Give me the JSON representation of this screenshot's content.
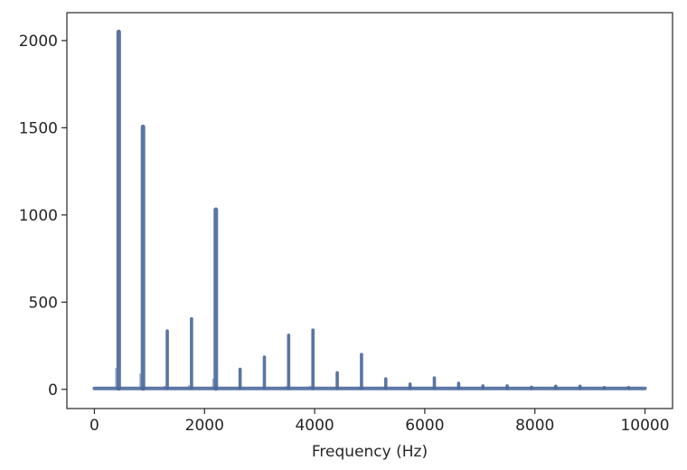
{
  "chart_data": {
    "type": "line",
    "title": "",
    "xlabel": "Frequency (Hz)",
    "ylabel": "",
    "xlim": [
      -500,
      10500
    ],
    "ylim": [
      -110,
      2160
    ],
    "xticks": [
      0,
      2000,
      4000,
      6000,
      8000,
      10000
    ],
    "yticks": [
      0,
      500,
      1000,
      1500,
      2000
    ],
    "grid": false,
    "series_color": "#4c6a9c",
    "baseline": 5,
    "x_start": 0,
    "x_end": 10000,
    "series": [
      {
        "peaks": [
          {
            "x": 441,
            "y": 2050
          },
          {
            "x": 882,
            "y": 1505
          },
          {
            "x": 1323,
            "y": 335
          },
          {
            "x": 1764,
            "y": 405
          },
          {
            "x": 2205,
            "y": 1030
          },
          {
            "x": 2646,
            "y": 115
          },
          {
            "x": 3087,
            "y": 185
          },
          {
            "x": 3528,
            "y": 310
          },
          {
            "x": 3969,
            "y": 340
          },
          {
            "x": 4410,
            "y": 95
          },
          {
            "x": 4851,
            "y": 200
          },
          {
            "x": 5292,
            "y": 60
          },
          {
            "x": 5733,
            "y": 30
          },
          {
            "x": 6174,
            "y": 65
          },
          {
            "x": 6615,
            "y": 35
          },
          {
            "x": 7056,
            "y": 20
          },
          {
            "x": 7497,
            "y": 20
          },
          {
            "x": 7938,
            "y": 12
          },
          {
            "x": 8379,
            "y": 18
          },
          {
            "x": 8820,
            "y": 18
          },
          {
            "x": 9261,
            "y": 10
          },
          {
            "x": 9702,
            "y": 10
          }
        ]
      }
    ]
  }
}
